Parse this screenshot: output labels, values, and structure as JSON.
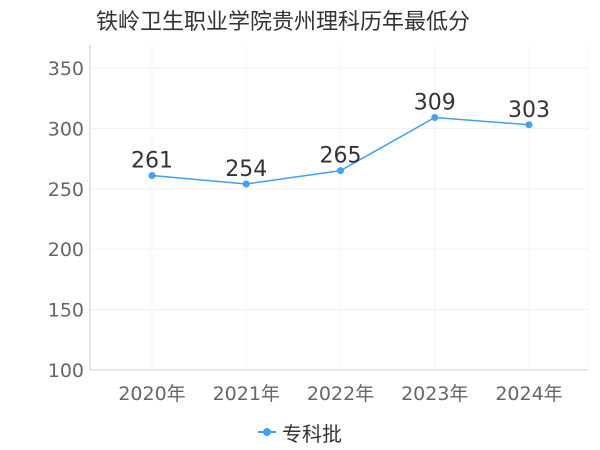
{
  "chart_data": {
    "type": "line",
    "title": "铁岭卫生职业学院贵州理科历年最低分",
    "categories": [
      "2020年",
      "2021年",
      "2022年",
      "2023年",
      "2024年"
    ],
    "series": [
      {
        "name": "专科批",
        "values": [
          261,
          254,
          265,
          309,
          303
        ],
        "color": "#3fa0f5"
      }
    ],
    "ylim": [
      100,
      350
    ],
    "yticks": [
      100,
      150,
      200,
      250,
      300,
      350
    ],
    "xlabel": "",
    "ylabel": "",
    "grid": true,
    "legend": "bottom-center"
  }
}
